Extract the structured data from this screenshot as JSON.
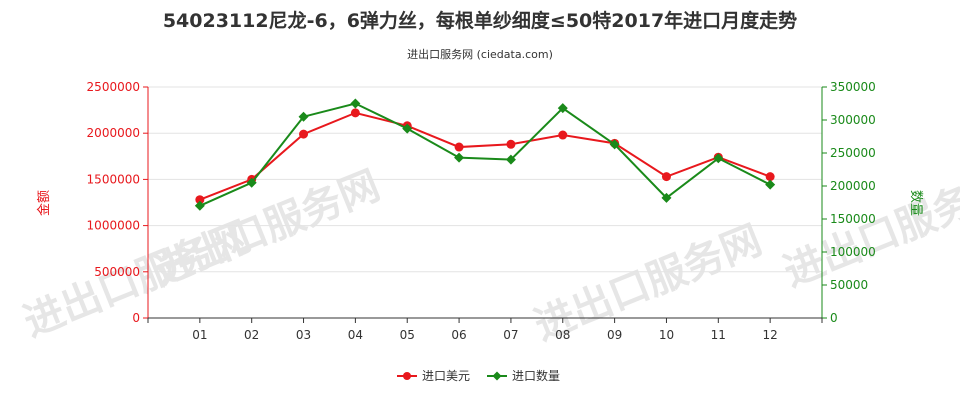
{
  "chart_data": {
    "type": "line",
    "title": "54023112尼龙-6，6弹力丝，每根单纱细度≤50特2017年进口月度走势",
    "subtitle": "进出口服务网 (ciedata.com)",
    "categories": [
      "01",
      "02",
      "03",
      "04",
      "05",
      "06",
      "07",
      "08",
      "09",
      "10",
      "11",
      "12"
    ],
    "series": [
      {
        "name": "进口美元",
        "axis": "left",
        "color": "#e8181d",
        "values": [
          1280000,
          1500000,
          1990000,
          2220000,
          2080000,
          1850000,
          1880000,
          1980000,
          1890000,
          1530000,
          1740000,
          1530000
        ]
      },
      {
        "name": "进口数量",
        "axis": "right",
        "color": "#1a8a1a",
        "values": [
          170000,
          205000,
          305000,
          325000,
          287000,
          243000,
          240000,
          318000,
          263000,
          182000,
          242000,
          202000
        ]
      }
    ],
    "y_left": {
      "label": "金额",
      "min": 0,
      "max": 2500000,
      "ticks": [
        0,
        500000,
        1000000,
        1500000,
        2000000,
        2500000
      ],
      "tick_labels": [
        "0",
        "500000",
        "1000000",
        "1500000",
        "2000000",
        "2500000"
      ],
      "color": "#e8181d"
    },
    "y_right": {
      "label": "数量",
      "min": 0,
      "max": 350000,
      "ticks": [
        0,
        50000,
        100000,
        150000,
        200000,
        250000,
        300000,
        350000
      ],
      "tick_labels": [
        "0",
        "50000",
        "100000",
        "150000",
        "200000",
        "250000",
        "300000",
        "350000"
      ],
      "color": "#1a8a1a"
    },
    "legend_position": "bottom-center",
    "grid": "horizontal"
  },
  "watermark": "进出口服务网"
}
